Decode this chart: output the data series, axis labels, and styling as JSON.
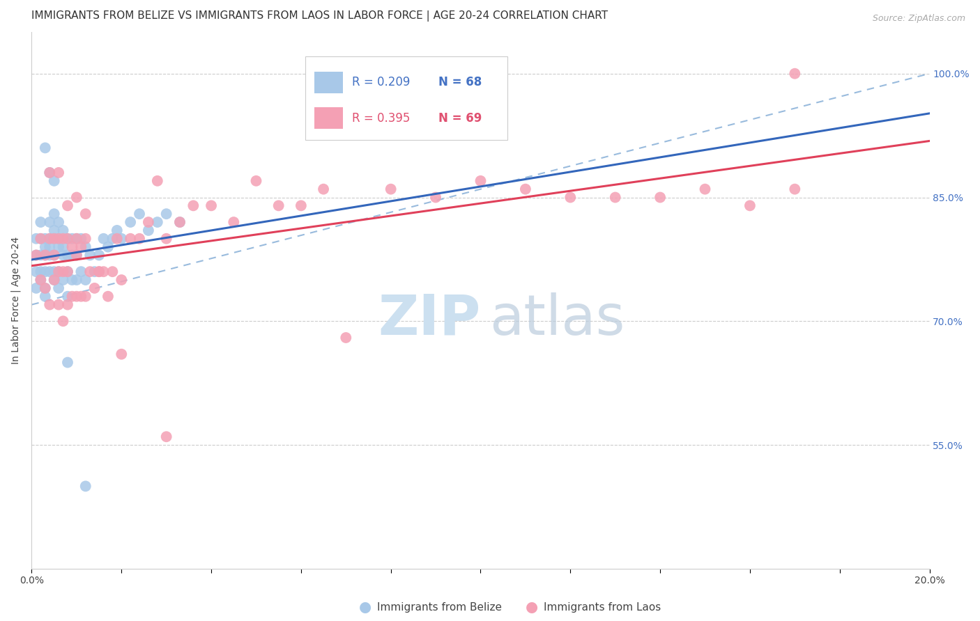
{
  "title": "IMMIGRANTS FROM BELIZE VS IMMIGRANTS FROM LAOS IN LABOR FORCE | AGE 20-24 CORRELATION CHART",
  "source": "Source: ZipAtlas.com",
  "ylabel": "In Labor Force | Age 20-24",
  "y_ticks": [
    0.55,
    0.7,
    0.85,
    1.0
  ],
  "y_tick_labels": [
    "55.0%",
    "70.0%",
    "85.0%",
    "100.0%"
  ],
  "xmin": 0.0,
  "xmax": 0.2,
  "ymin": 0.4,
  "ymax": 1.05,
  "belize_R": 0.209,
  "belize_N": 68,
  "laos_R": 0.395,
  "laos_N": 69,
  "belize_color": "#a8c8e8",
  "belize_line_color": "#3366bb",
  "laos_color": "#f4a0b4",
  "laos_line_color": "#e0405a",
  "ref_line_color": "#99bbdd",
  "watermark_color": "#cce0f0",
  "title_fontsize": 11,
  "axis_label_fontsize": 10,
  "tick_fontsize": 10,
  "source_fontsize": 9,
  "legend_text_color_blue": "#4472c4",
  "legend_text_color_pink": "#e05070"
}
